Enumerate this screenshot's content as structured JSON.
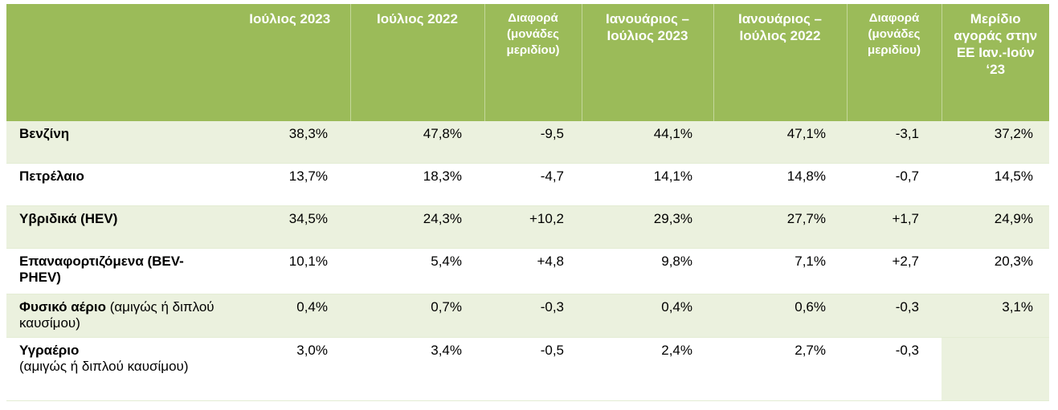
{
  "table": {
    "headers": [
      "",
      "Ιούλιος 2023",
      "Ιούλιος 2022",
      "Διαφορά (μονάδες μεριδίου)",
      "Ιανουάριος – Ιούλιος 2023",
      "Ιανουάριος – Ιούλιος 2022",
      "Διαφορά (μονάδες μεριδίου)",
      "Μερίδιο αγοράς στην ΕΕ Ιαν.-Ιούν ‘23"
    ],
    "rows": [
      {
        "label": "Βενζίνη",
        "label_suffix": "",
        "values": [
          "38,3%",
          "47,8%",
          "-9,5",
          "44,1%",
          "47,1%",
          "-3,1",
          "37,2%"
        ]
      },
      {
        "label": "Πετρέλαιο",
        "label_suffix": "",
        "values": [
          "13,7%",
          "18,3%",
          "-4,7",
          "14,1%",
          "14,8%",
          "-0,7",
          "14,5%"
        ]
      },
      {
        "label": "Υβριδικά (HEV)",
        "label_suffix": "",
        "values": [
          "34,5%",
          "24,3%",
          "+10,2",
          "29,3%",
          "27,7%",
          "+1,7",
          "24,9%"
        ]
      },
      {
        "label": "Επαναφορτιζόμενα (BEV-PHEV)",
        "label_suffix": "",
        "values": [
          "10,1%",
          "5,4%",
          "+4,8",
          "9,8%",
          "7,1%",
          "+2,7",
          "20,3%"
        ]
      },
      {
        "label": "Φυσικό αέριο",
        "label_suffix": " (αμιγώς ή διπλού καυσίμου)",
        "values": [
          "0,4%",
          "0,7%",
          "-0,3",
          "0,4%",
          "0,6%",
          "-0,3",
          "3,1%"
        ]
      },
      {
        "label": "Υγραέριο",
        "label_suffix": " (αμιγώς ή διπλού καυσίμου)",
        "values": [
          "3,0%",
          "3,4%",
          "-0,5",
          "2,4%",
          "2,7%",
          "-0,3",
          ""
        ]
      }
    ]
  }
}
